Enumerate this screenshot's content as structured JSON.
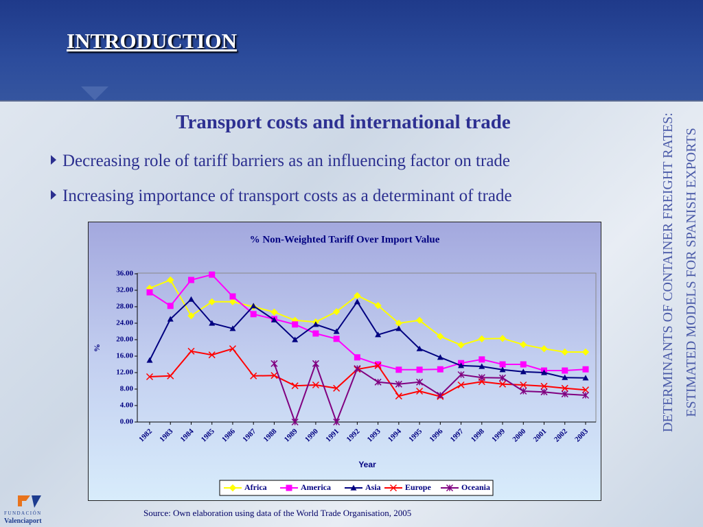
{
  "header": {
    "title": "INTRODUCTION"
  },
  "subtitle": "Transport costs and international trade",
  "bullets": [
    "Decreasing role of tariff barriers as an influencing factor on trade",
    "Increasing importance of transport costs as a determinant of trade"
  ],
  "side_text": [
    "DETERMINANTS OF CONTAINER FREIGHT RATES:",
    "ESTIMATED MODELS FOR SPANISH EXPORTS"
  ],
  "source": "Source: Own elaboration using data of the World Trade Organisation, 2005",
  "logo": {
    "top": "FUNDACIÓN",
    "bottom": "Valenciaport"
  },
  "chart_data": {
    "type": "line",
    "title": "% Non-Weighted Tariff Over Import Value",
    "x_label": "Year",
    "y_label": "%",
    "categories": [
      "1982",
      "1983",
      "1984",
      "1985",
      "1986",
      "1987",
      "1988",
      "1989",
      "1990",
      "1991",
      "1992",
      "1993",
      "1994",
      "1995",
      "1996",
      "1997",
      "1998",
      "1999",
      "2000",
      "2001",
      "2002",
      "2003"
    ],
    "ylim": [
      0,
      36
    ],
    "yticks": [
      {
        "value": 0,
        "label": "0.00"
      },
      {
        "value": 4,
        "label": "4.00"
      },
      {
        "value": 8,
        "label": "8.00"
      },
      {
        "value": 12,
        "label": "12.00"
      },
      {
        "value": 16,
        "label": "16.00"
      },
      {
        "value": 20,
        "label": "20.00"
      },
      {
        "value": 24,
        "label": "24.00"
      },
      {
        "value": 28,
        "label": "28.00"
      },
      {
        "value": 32,
        "label": "32.00"
      },
      {
        "value": 36,
        "label": "36.00"
      }
    ],
    "grid": false,
    "legend": "bottom",
    "series": [
      {
        "name": "Africa",
        "color": "#ffff00",
        "marker": "diamond",
        "values": [
          32.5,
          34.5,
          25.8,
          29.2,
          29.2,
          28,
          26.7,
          24.7,
          24.3,
          26.8,
          30.7,
          28.3,
          24,
          24.7,
          20.8,
          18.7,
          20.2,
          20.3,
          18.8,
          17.8,
          17,
          17
        ]
      },
      {
        "name": "America",
        "color": "#ff00ff",
        "marker": "square",
        "values": [
          31.5,
          28.2,
          34.5,
          35.8,
          30.5,
          26.2,
          25,
          23.7,
          21.5,
          20.2,
          15.7,
          14,
          12.7,
          12.7,
          12.8,
          14.3,
          15.2,
          14,
          14,
          12.5,
          12.5,
          12.8
        ]
      },
      {
        "name": "Asia",
        "color": "#000080",
        "marker": "triangle",
        "values": [
          15,
          25,
          29.8,
          24,
          22.7,
          28.2,
          24.8,
          20,
          23.7,
          22,
          29.2,
          21.2,
          22.7,
          17.8,
          15.7,
          13.7,
          13.5,
          12.7,
          12.2,
          12,
          10.8,
          10.7
        ]
      },
      {
        "name": "Europe",
        "color": "#ff0000",
        "marker": "x",
        "values": [
          11,
          11.2,
          17.2,
          16.3,
          17.8,
          11.2,
          11.3,
          8.8,
          9,
          8.2,
          12.8,
          13.7,
          6.3,
          7.5,
          6.2,
          9,
          9.8,
          9.2,
          9,
          8.7,
          8.2,
          7.8
        ]
      },
      {
        "name": "Oceania",
        "color": "#800080",
        "marker": "star",
        "values": [
          null,
          null,
          null,
          null,
          null,
          null,
          14.2,
          0,
          14.2,
          0,
          13,
          9.7,
          9.2,
          9.7,
          6.5,
          11.5,
          10.8,
          10.7,
          7.5,
          7.3,
          6.8,
          6.5
        ]
      }
    ]
  }
}
